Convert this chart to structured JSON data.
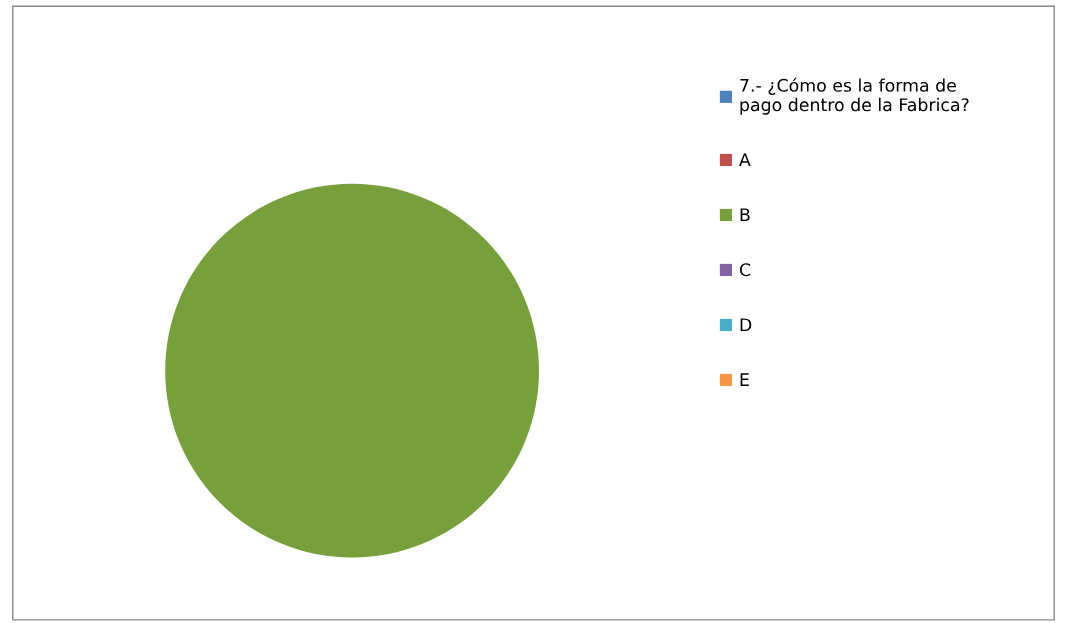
{
  "chart_data": {
    "type": "pie",
    "categories": [
      "7.- ¿Cómo es la forma de pago dentro de la Fabrica?",
      "A",
      "B",
      "C",
      "D",
      "E"
    ],
    "values": [
      0,
      0,
      100,
      0,
      0,
      0
    ],
    "colors": [
      "#4f81bd",
      "#c0504d",
      "#77a03c",
      "#8064a2",
      "#4bacc6",
      "#f79646"
    ],
    "legend": "right"
  }
}
